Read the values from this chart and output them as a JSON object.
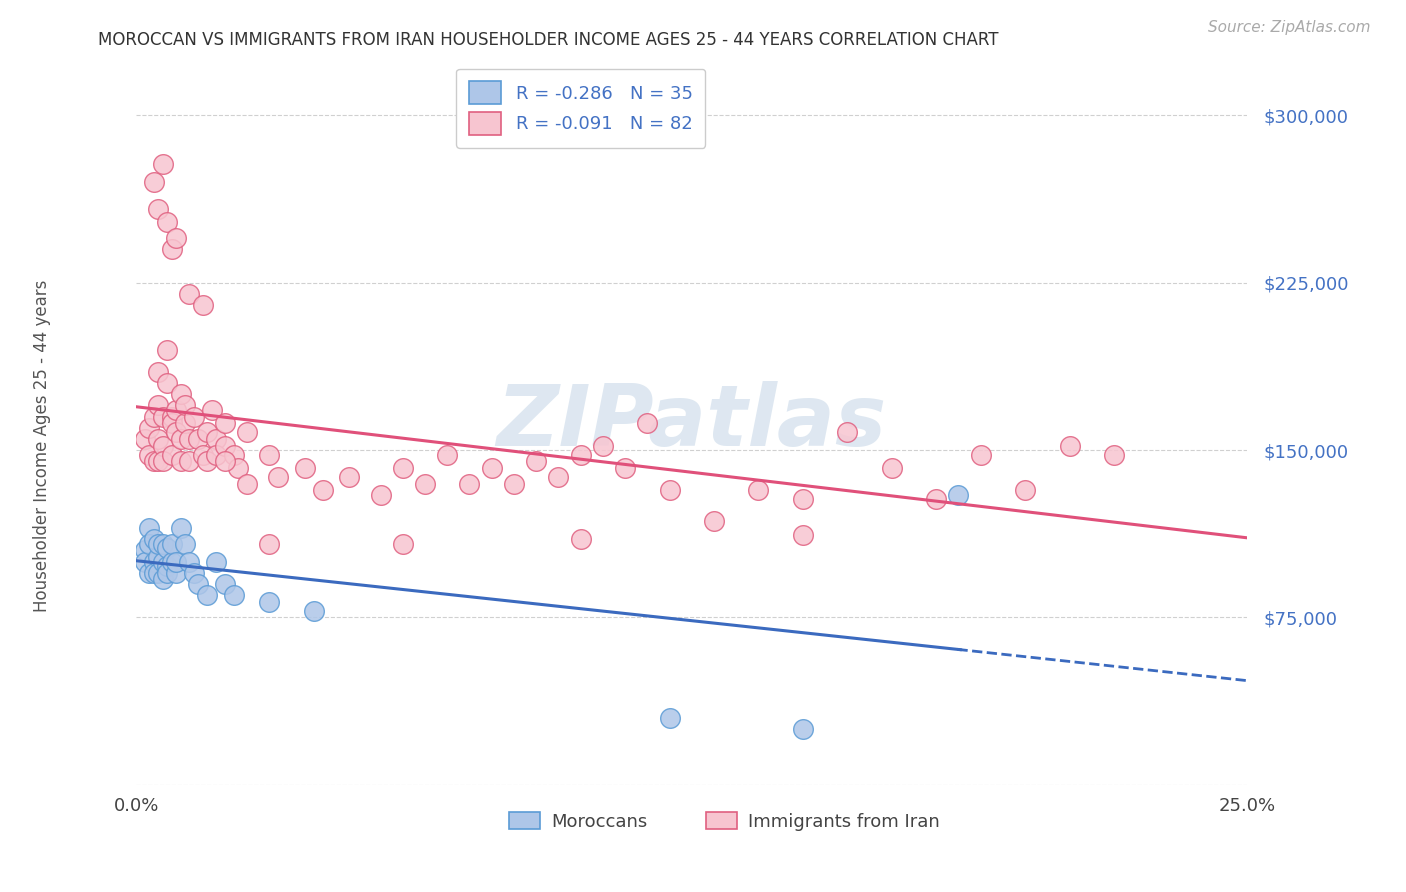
{
  "title": "MOROCCAN VS IMMIGRANTS FROM IRAN HOUSEHOLDER INCOME AGES 25 - 44 YEARS CORRELATION CHART",
  "source_text": "Source: ZipAtlas.com",
  "ylabel": "Householder Income Ages 25 - 44 years",
  "legend_label1": "Moroccans",
  "legend_label2": "Immigrants from Iran",
  "r1": -0.286,
  "n1": 35,
  "r2": -0.091,
  "n2": 82,
  "xmin": 0.0,
  "xmax": 0.25,
  "ymin": 0,
  "ymax": 325000,
  "yticks": [
    0,
    75000,
    150000,
    225000,
    300000
  ],
  "ytick_labels": [
    "",
    "$75,000",
    "$150,000",
    "$225,000",
    "$300,000"
  ],
  "xticks": [
    0.0,
    0.05,
    0.1,
    0.15,
    0.2,
    0.25
  ],
  "xtick_labels": [
    "0.0%",
    "",
    "",
    "",
    "",
    "25.0%"
  ],
  "color_moroccan_fill": "#aec6e8",
  "color_moroccan_edge": "#5b9bd5",
  "color_iran_fill": "#f7c5d0",
  "color_iran_edge": "#e06080",
  "color_line_moroccan": "#3b6abf",
  "color_line_iran": "#e0507a",
  "grid_color": "#d0d0d0",
  "ytick_color": "#4472c4",
  "watermark_text": "ZIPatlas",
  "moroccan_x": [
    0.002,
    0.002,
    0.003,
    0.003,
    0.003,
    0.004,
    0.004,
    0.004,
    0.005,
    0.005,
    0.005,
    0.006,
    0.006,
    0.006,
    0.007,
    0.007,
    0.007,
    0.008,
    0.008,
    0.009,
    0.009,
    0.01,
    0.011,
    0.012,
    0.013,
    0.014,
    0.016,
    0.018,
    0.02,
    0.022,
    0.03,
    0.04,
    0.12,
    0.15,
    0.185
  ],
  "moroccan_y": [
    105000,
    100000,
    115000,
    95000,
    108000,
    100000,
    110000,
    95000,
    102000,
    95000,
    108000,
    92000,
    100000,
    108000,
    98000,
    106000,
    95000,
    100000,
    108000,
    95000,
    100000,
    115000,
    108000,
    100000,
    95000,
    90000,
    85000,
    100000,
    90000,
    85000,
    82000,
    78000,
    30000,
    25000,
    130000
  ],
  "iran_x": [
    0.002,
    0.003,
    0.003,
    0.004,
    0.004,
    0.005,
    0.005,
    0.005,
    0.005,
    0.006,
    0.006,
    0.006,
    0.007,
    0.007,
    0.008,
    0.008,
    0.008,
    0.009,
    0.009,
    0.01,
    0.01,
    0.01,
    0.011,
    0.011,
    0.012,
    0.012,
    0.013,
    0.014,
    0.015,
    0.016,
    0.016,
    0.017,
    0.018,
    0.018,
    0.02,
    0.02,
    0.022,
    0.023,
    0.025,
    0.03,
    0.032,
    0.038,
    0.042,
    0.048,
    0.055,
    0.06,
    0.065,
    0.07,
    0.075,
    0.08,
    0.085,
    0.09,
    0.095,
    0.1,
    0.105,
    0.11,
    0.115,
    0.12,
    0.13,
    0.14,
    0.15,
    0.16,
    0.17,
    0.18,
    0.19,
    0.2,
    0.21,
    0.22,
    0.004,
    0.005,
    0.006,
    0.007,
    0.008,
    0.009,
    0.012,
    0.015,
    0.02,
    0.025,
    0.03,
    0.06,
    0.1,
    0.15
  ],
  "iran_y": [
    155000,
    160000,
    148000,
    165000,
    145000,
    170000,
    185000,
    155000,
    145000,
    165000,
    152000,
    145000,
    195000,
    180000,
    165000,
    148000,
    162000,
    158000,
    168000,
    155000,
    175000,
    145000,
    162000,
    170000,
    155000,
    145000,
    165000,
    155000,
    148000,
    158000,
    145000,
    168000,
    155000,
    148000,
    162000,
    152000,
    148000,
    142000,
    158000,
    148000,
    138000,
    142000,
    132000,
    138000,
    130000,
    142000,
    135000,
    148000,
    135000,
    142000,
    135000,
    145000,
    138000,
    148000,
    152000,
    142000,
    162000,
    132000,
    118000,
    132000,
    128000,
    158000,
    142000,
    128000,
    148000,
    132000,
    152000,
    148000,
    270000,
    258000,
    278000,
    252000,
    240000,
    245000,
    220000,
    215000,
    145000,
    135000,
    108000,
    108000,
    110000,
    112000
  ]
}
